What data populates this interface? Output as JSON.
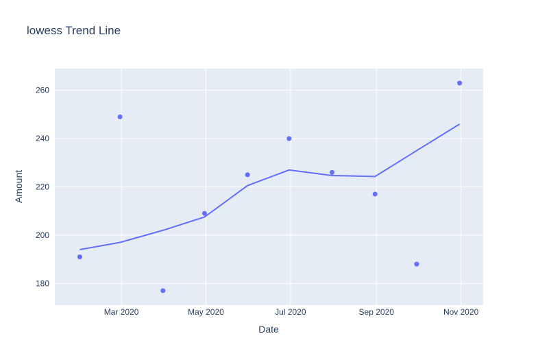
{
  "chart_data": {
    "type": "scatter",
    "title": "lowess Trend Line",
    "xlabel": "Date",
    "ylabel": "Amount",
    "xlim": [
      "2020-01-13",
      "2020-11-17"
    ],
    "ylim": [
      171,
      269
    ],
    "x_ticks": [
      {
        "date": "2020-03-01",
        "label": "Mar 2020"
      },
      {
        "date": "2020-05-01",
        "label": "May 2020"
      },
      {
        "date": "2020-07-01",
        "label": "Jul 2020"
      },
      {
        "date": "2020-09-01",
        "label": "Sep 2020"
      },
      {
        "date": "2020-11-01",
        "label": "Nov 2020"
      }
    ],
    "y_ticks": [
      180,
      200,
      220,
      240,
      260
    ],
    "grid": true,
    "colors": {
      "plot_bg": "#e5ecf6",
      "grid": "#ffffff",
      "series": "#636efa",
      "text": "#2a3f5f"
    },
    "series": [
      {
        "type": "scatter",
        "points": [
          {
            "x": "2020-01-31",
            "y": 191
          },
          {
            "x": "2020-02-29",
            "y": 249
          },
          {
            "x": "2020-03-31",
            "y": 177
          },
          {
            "x": "2020-04-30",
            "y": 209
          },
          {
            "x": "2020-05-31",
            "y": 225
          },
          {
            "x": "2020-06-30",
            "y": 240
          },
          {
            "x": "2020-07-31",
            "y": 226
          },
          {
            "x": "2020-08-31",
            "y": 217
          },
          {
            "x": "2020-09-30",
            "y": 188
          },
          {
            "x": "2020-10-31",
            "y": 263
          }
        ]
      },
      {
        "type": "line",
        "points": [
          {
            "x": "2020-01-31",
            "y": 194
          },
          {
            "x": "2020-02-29",
            "y": 197
          },
          {
            "x": "2020-03-31",
            "y": 202
          },
          {
            "x": "2020-04-30",
            "y": 207.5
          },
          {
            "x": "2020-05-31",
            "y": 220.5
          },
          {
            "x": "2020-06-30",
            "y": 227
          },
          {
            "x": "2020-07-31",
            "y": 224.7
          },
          {
            "x": "2020-08-31",
            "y": 224.3
          },
          {
            "x": "2020-09-30",
            "y": 235
          },
          {
            "x": "2020-10-31",
            "y": 246
          }
        ]
      }
    ]
  }
}
